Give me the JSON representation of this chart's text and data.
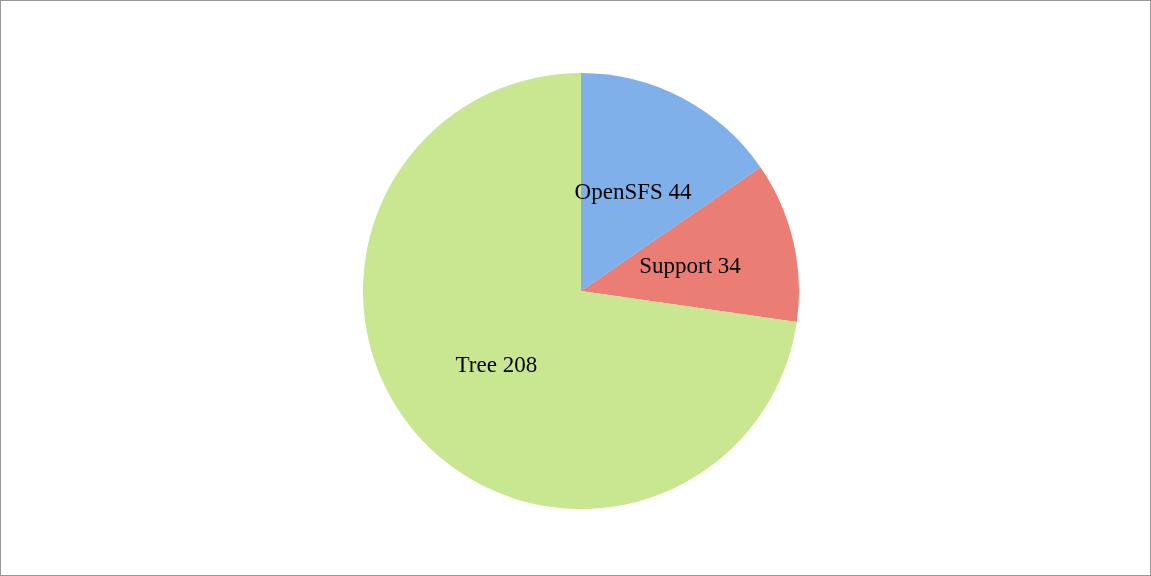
{
  "chart_data": {
    "type": "pie",
    "categories": [
      "OpenSFS",
      "Support",
      "Tree"
    ],
    "values": [
      44,
      34,
      208
    ],
    "value_labels": [
      "44",
      "34",
      "208"
    ],
    "colors": [
      "#7fb0ea",
      "#ea7d74",
      "#c9e690"
    ]
  }
}
